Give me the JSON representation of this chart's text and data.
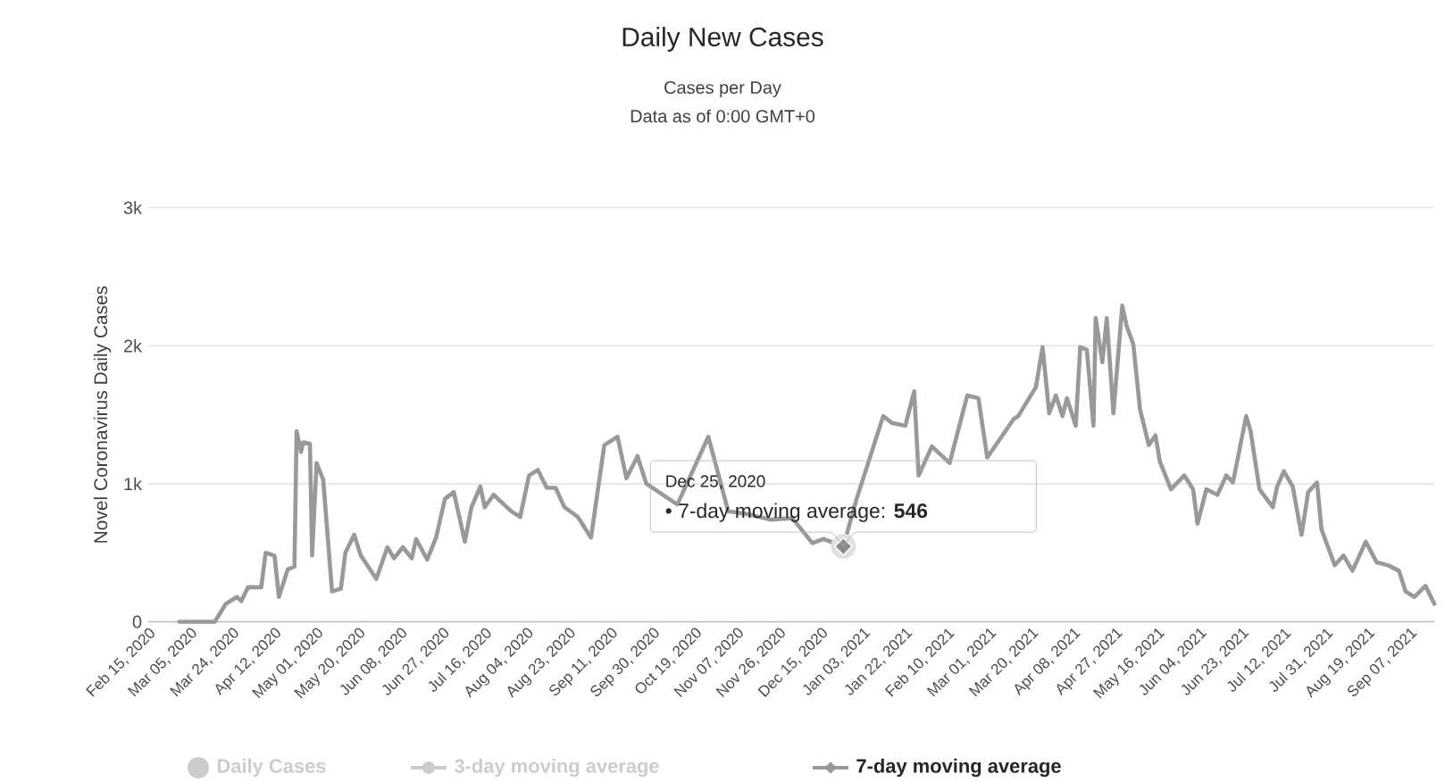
{
  "chart_data": {
    "type": "line",
    "title": "Daily New Cases",
    "subtitle": "Cases per Day",
    "ylabel": "Novel Coronavirus Daily Cases",
    "annotations": [
      "Data as of 0:00 GMT+0",
      "Dec 25, 2020",
      {
        "text": "• 7-day moving average: **546**",
        "x": "2020-12-25",
        "y": 546
      }
    ],
    "xlim": [
      "2020-02-15",
      "2021-09-18"
    ],
    "xticks": [
      {
        "value": "2020-02-15",
        "label": "Feb 15, 2020"
      },
      {
        "value": "2020-03-05",
        "label": "Mar 05, 2020"
      },
      {
        "value": "2020-03-24",
        "label": "Mar 24, 2020"
      },
      {
        "value": "2020-04-12",
        "label": "Apr 12, 2020"
      },
      {
        "value": "2020-05-01",
        "label": "May 01, 2020"
      },
      {
        "value": "2020-05-20",
        "label": "May 20, 2020"
      },
      {
        "value": "2020-06-08",
        "label": "Jun 08, 2020"
      },
      {
        "value": "2020-06-27",
        "label": "Jun 27, 2020"
      },
      {
        "value": "2020-07-16",
        "label": "Jul 16, 2020"
      },
      {
        "value": "2020-08-04",
        "label": "Aug 04, 2020"
      },
      {
        "value": "2020-08-23",
        "label": "Aug 23, 2020"
      },
      {
        "value": "2020-09-11",
        "label": "Sep 11, 2020"
      },
      {
        "value": "2020-09-30",
        "label": "Sep 30, 2020"
      },
      {
        "value": "2020-10-19",
        "label": "Oct 19, 2020"
      },
      {
        "value": "2020-11-07",
        "label": "Nov 07, 2020"
      },
      {
        "value": "2020-11-26",
        "label": "Nov 26, 2020"
      },
      {
        "value": "2020-12-15",
        "label": "Dec 15, 2020"
      },
      {
        "value": "2021-01-03",
        "label": "Jan 03, 2021"
      },
      {
        "value": "2021-01-22",
        "label": "Jan 22, 2021"
      },
      {
        "value": "2021-02-10",
        "label": "Feb 10, 2021"
      },
      {
        "value": "2021-03-01",
        "label": "Mar 01, 2021"
      },
      {
        "value": "2021-03-20",
        "label": "Mar 20, 2021"
      },
      {
        "value": "2021-04-08",
        "label": "Apr 08, 2021"
      },
      {
        "value": "2021-04-27",
        "label": "Apr 27, 2021"
      },
      {
        "value": "2021-05-16",
        "label": "May 16, 2021"
      },
      {
        "value": "2021-06-04",
        "label": "Jun 04, 2021"
      },
      {
        "value": "2021-06-23",
        "label": "Jun 23, 2021"
      },
      {
        "value": "2021-07-12",
        "label": "Jul 12, 2021"
      },
      {
        "value": "2021-07-31",
        "label": "Jul 31, 2021"
      },
      {
        "value": "2021-08-19",
        "label": "Aug 19, 2021"
      },
      {
        "value": "2021-09-07",
        "label": "Sep 07, 2021"
      }
    ],
    "ylim": [
      0,
      3000
    ],
    "yticks": [
      {
        "value": 0,
        "label": "0"
      },
      {
        "value": 1000,
        "label": "1k"
      },
      {
        "value": 2000,
        "label": "2k"
      },
      {
        "value": 3000,
        "label": "3k"
      }
    ],
    "grid": "y",
    "legend": "bottom",
    "marker": "none",
    "line_style": "solid",
    "x": [
      "2020-02-29",
      "2020-03-16",
      "2020-03-21",
      "2020-03-26",
      "2020-03-28",
      "2020-03-31",
      "2020-04-06",
      "2020-04-08",
      "2020-04-12",
      "2020-04-14",
      "2020-04-18",
      "2020-04-21",
      "2020-04-22",
      "2020-04-24",
      "2020-04-25",
      "2020-04-28",
      "2020-04-29",
      "2020-05-01",
      "2020-05-04",
      "2020-05-08",
      "2020-05-12",
      "2020-05-14",
      "2020-05-18",
      "2020-05-21",
      "2020-05-28",
      "2020-06-02",
      "2020-06-05",
      "2020-06-09",
      "2020-06-13",
      "2020-06-15",
      "2020-06-20",
      "2020-06-24",
      "2020-06-28",
      "2020-07-02",
      "2020-07-07",
      "2020-07-10",
      "2020-07-14",
      "2020-07-16",
      "2020-07-20",
      "2020-07-28",
      "2020-08-01",
      "2020-08-05",
      "2020-08-09",
      "2020-08-13",
      "2020-08-17",
      "2020-08-21",
      "2020-08-27",
      "2020-09-02",
      "2020-09-08",
      "2020-09-14",
      "2020-09-18",
      "2020-09-23",
      "2020-09-27",
      "2020-10-11",
      "2020-10-25",
      "2020-11-03",
      "2020-11-12",
      "2020-11-22",
      "2020-12-02",
      "2020-12-11",
      "2020-12-16",
      "2020-12-25",
      "2020-12-31",
      "2021-01-12",
      "2021-01-16",
      "2021-01-22",
      "2021-01-26",
      "2021-01-28",
      "2021-02-03",
      "2021-02-11",
      "2021-02-19",
      "2021-02-24",
      "2021-02-28",
      "2021-03-12",
      "2021-03-14",
      "2021-03-22",
      "2021-03-25",
      "2021-03-28",
      "2021-03-31",
      "2021-04-03",
      "2021-04-05",
      "2021-04-09",
      "2021-04-11",
      "2021-04-14",
      "2021-04-17",
      "2021-04-18",
      "2021-04-21",
      "2021-04-23",
      "2021-04-26",
      "2021-04-30",
      "2021-05-02",
      "2021-05-05",
      "2021-05-08",
      "2021-05-12",
      "2021-05-15",
      "2021-05-17",
      "2021-05-22",
      "2021-05-28",
      "2021-06-01",
      "2021-06-03",
      "2021-06-07",
      "2021-06-12",
      "2021-06-16",
      "2021-06-19",
      "2021-06-25",
      "2021-06-27",
      "2021-07-01",
      "2021-07-07",
      "2021-07-09",
      "2021-07-12",
      "2021-07-16",
      "2021-07-20",
      "2021-07-23",
      "2021-07-27",
      "2021-07-29",
      "2021-08-04",
      "2021-08-08",
      "2021-08-12",
      "2021-08-18",
      "2021-08-23",
      "2021-08-28",
      "2021-09-02",
      "2021-09-05",
      "2021-09-09",
      "2021-09-14",
      "2021-09-18"
    ],
    "series": [
      {
        "name": "Daily Cases",
        "type": "bar",
        "color": "#cccccc",
        "values": [
          null,
          null,
          null,
          null,
          null,
          null,
          null,
          null,
          null,
          null,
          null,
          null,
          null,
          null,
          null,
          null,
          null,
          null,
          null,
          null,
          null,
          null,
          null,
          null,
          null,
          null,
          null,
          null,
          null,
          null,
          null,
          null,
          null,
          null,
          null,
          null,
          null,
          null,
          null,
          null,
          null,
          null,
          null,
          null,
          null,
          null,
          null,
          null,
          null,
          null,
          null,
          null,
          null,
          null,
          null,
          null,
          null,
          null,
          null,
          null,
          null,
          null,
          null,
          null,
          null,
          null,
          null,
          null,
          null,
          null,
          null,
          null,
          null,
          null,
          null,
          null,
          null,
          null,
          null,
          null,
          null,
          null,
          null,
          null,
          null,
          null,
          null,
          null,
          null,
          null,
          null,
          null,
          null,
          null,
          null,
          null,
          null,
          null,
          null,
          null,
          null,
          null,
          null,
          null,
          null,
          null,
          null,
          null,
          null,
          null,
          null,
          null,
          null,
          null,
          null,
          null,
          null,
          null,
          null,
          null,
          null,
          null,
          null,
          null,
          null,
          null
        ]
      },
      {
        "name": "3-day moving average",
        "color": "#cccccc",
        "values": [
          null,
          null,
          null,
          null,
          null,
          null,
          null,
          null,
          null,
          null,
          null,
          null,
          null,
          null,
          null,
          null,
          null,
          null,
          null,
          null,
          null,
          null,
          null,
          null,
          null,
          null,
          null,
          null,
          null,
          null,
          null,
          null,
          null,
          null,
          null,
          null,
          null,
          null,
          null,
          null,
          null,
          null,
          null,
          null,
          null,
          null,
          null,
          null,
          null,
          null,
          null,
          null,
          null,
          null,
          null,
          null,
          null,
          null,
          null,
          null,
          null,
          null,
          null,
          null,
          null,
          null,
          null,
          null,
          null,
          null,
          null,
          null,
          null,
          null,
          null,
          null,
          null,
          null,
          null,
          null,
          null,
          null,
          null,
          null,
          null,
          null,
          null,
          null,
          null,
          null,
          null,
          null,
          null,
          null,
          null,
          null,
          null,
          null,
          null,
          null,
          null,
          null,
          null,
          null,
          null,
          null,
          null,
          null,
          null,
          null,
          null,
          null,
          null,
          null,
          null,
          null,
          null,
          null,
          null,
          null,
          null,
          null,
          null,
          null,
          null,
          null
        ]
      },
      {
        "name": "7-day moving average",
        "color": "#999999",
        "values": [
          0,
          0,
          130,
          180,
          150,
          250,
          250,
          500,
          480,
          180,
          380,
          400,
          1380,
          1230,
          1300,
          1290,
          480,
          1150,
          1030,
          220,
          240,
          500,
          630,
          480,
          310,
          540,
          460,
          540,
          460,
          600,
          450,
          610,
          890,
          940,
          580,
          830,
          980,
          830,
          920,
          800,
          760,
          1060,
          1100,
          970,
          970,
          830,
          760,
          610,
          1280,
          1340,
          1040,
          1200,
          1000,
          850,
          1340,
          800,
          780,
          740,
          750,
          570,
          600,
          546,
          890,
          1490,
          1440,
          1420,
          1670,
          1060,
          1270,
          1150,
          1640,
          1620,
          1190,
          1470,
          1490,
          1700,
          1990,
          1510,
          1640,
          1490,
          1620,
          1420,
          1990,
          1970,
          1420,
          2200,
          1880,
          2200,
          1510,
          2290,
          2140,
          2010,
          1540,
          1280,
          1350,
          1160,
          960,
          1060,
          960,
          710,
          960,
          920,
          1060,
          1010,
          1490,
          1380,
          960,
          830,
          980,
          1090,
          980,
          630,
          940,
          1010,
          670,
          410,
          480,
          370,
          580,
          430,
          410,
          370,
          220,
          180,
          260,
          130
        ]
      }
    ]
  }
}
